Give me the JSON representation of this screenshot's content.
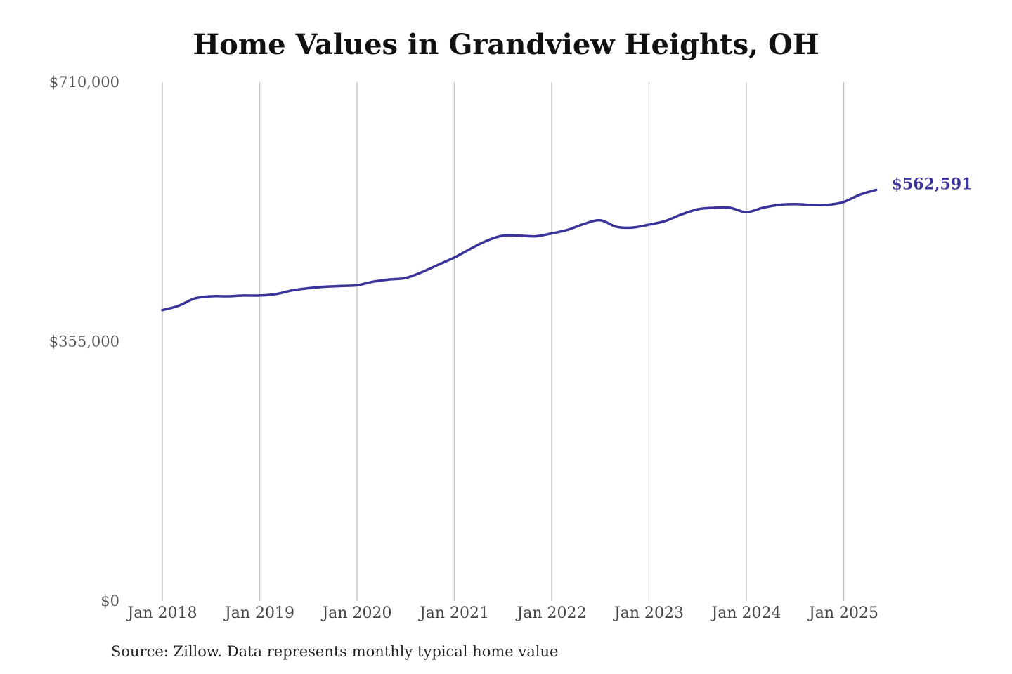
{
  "chart_data": {
    "type": "line",
    "title": "Home Values in Grandview Heights, OH",
    "source": "Source: Zillow. Data represents monthly typical home value",
    "ylim": [
      0,
      710000
    ],
    "y_ticks": [
      {
        "value": 0,
        "label": "$0"
      },
      {
        "value": 355000,
        "label": "$355,000"
      },
      {
        "value": 710000,
        "label": "$710,000"
      }
    ],
    "x_ticks": [
      {
        "date": "2018-01",
        "label": "Jan 2018"
      },
      {
        "date": "2019-01",
        "label": "Jan 2019"
      },
      {
        "date": "2020-01",
        "label": "Jan 2020"
      },
      {
        "date": "2021-01",
        "label": "Jan 2021"
      },
      {
        "date": "2022-01",
        "label": "Jan 2022"
      },
      {
        "date": "2023-01",
        "label": "Jan 2023"
      },
      {
        "date": "2024-01",
        "label": "Jan 2024"
      },
      {
        "date": "2025-01",
        "label": "Jan 2025"
      }
    ],
    "x_range": [
      "2018-01",
      "2025-05"
    ],
    "grid": "vertical",
    "line_color": "#3a3399",
    "end_label": "$562,591",
    "series": [
      {
        "x": [
          "2018-01",
          "2018-03",
          "2018-05",
          "2018-07",
          "2018-09",
          "2018-11",
          "2019-01",
          "2019-03",
          "2019-05",
          "2019-07",
          "2019-09",
          "2019-11",
          "2020-01",
          "2020-03",
          "2020-05",
          "2020-07",
          "2020-09",
          "2020-11",
          "2021-01",
          "2021-03",
          "2021-05",
          "2021-07",
          "2021-09",
          "2021-11",
          "2022-01",
          "2022-03",
          "2022-05",
          "2022-07",
          "2022-09",
          "2022-11",
          "2023-01",
          "2023-03",
          "2023-05",
          "2023-07",
          "2023-09",
          "2023-11",
          "2024-01",
          "2024-03",
          "2024-05",
          "2024-07",
          "2024-09",
          "2024-11",
          "2025-01",
          "2025-03",
          "2025-05"
        ],
        "values": [
          398000,
          404000,
          414000,
          417000,
          417000,
          418000,
          418000,
          420000,
          425000,
          428000,
          430000,
          431000,
          432000,
          437000,
          440000,
          442000,
          450000,
          460000,
          470000,
          482000,
          493000,
          500000,
          500000,
          499000,
          503000,
          508000,
          516000,
          521000,
          512000,
          511000,
          515000,
          520000,
          529000,
          536000,
          538000,
          538000,
          532000,
          538000,
          542000,
          543000,
          542000,
          542000,
          546000,
          556000,
          562591
        ]
      }
    ]
  }
}
